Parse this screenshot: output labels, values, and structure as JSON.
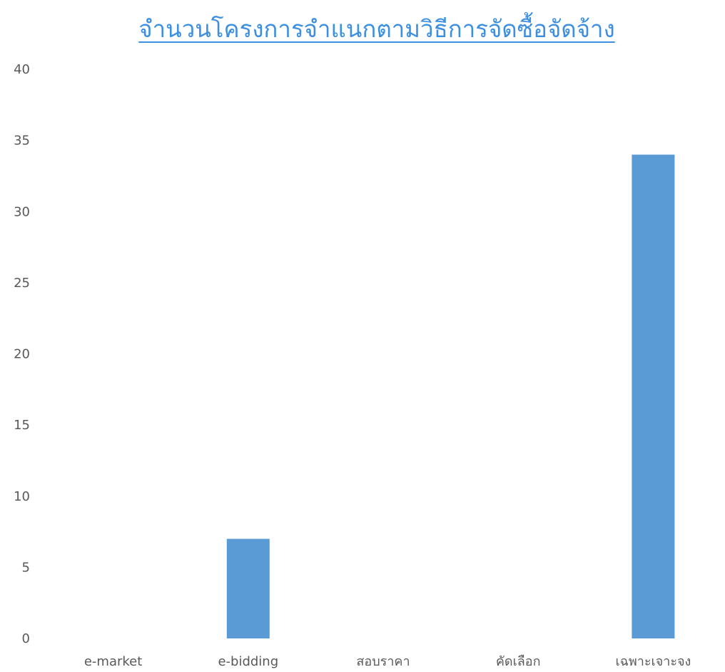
{
  "chart_data": {
    "type": "bar",
    "title": "จำนวนโครงการจำแนกตามวิธีการจัดซื้อจัดจ้าง",
    "xlabel": "",
    "ylabel": "",
    "categories": [
      "e-market",
      "e-bidding",
      "สอบราคา",
      "คัดเลือก",
      "เฉพาะเจาะจง"
    ],
    "values": [
      0,
      7,
      0,
      0,
      34
    ],
    "ylim": [
      0,
      40
    ],
    "yticks": [
      0,
      5,
      10,
      15,
      20,
      25,
      30,
      35,
      40
    ],
    "grid": false,
    "legend": "none",
    "bar_color": "#5b9bd5",
    "title_color": "#3d8fe0"
  }
}
